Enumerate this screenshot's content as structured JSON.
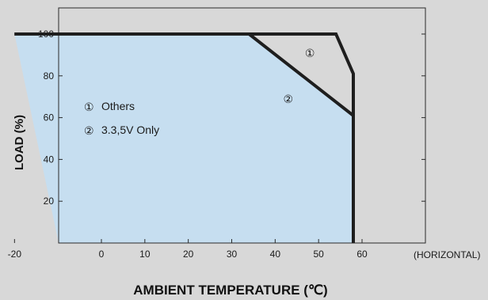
{
  "chart_data": {
    "type": "area",
    "title": "",
    "xlabel": "AMBIENT TEMPERATURE (℃)",
    "ylabel": "LOAD (%)",
    "x_unit_note": "(HORIZONTAL)",
    "xlim": [
      -20,
      65
    ],
    "ylim": [
      0,
      110
    ],
    "xticks": [
      -20,
      0,
      10,
      20,
      30,
      40,
      50,
      60
    ],
    "yticks": [
      20,
      40,
      60,
      80,
      100
    ],
    "grid": false,
    "series": [
      {
        "name": "Others",
        "marker": "①",
        "points": [
          [
            -20,
            100
          ],
          [
            54,
            100
          ],
          [
            58,
            81
          ],
          [
            58,
            0
          ]
        ]
      },
      {
        "name": "3.3,5V Only",
        "marker": "②",
        "points": [
          [
            -20,
            100
          ],
          [
            34,
            100
          ],
          [
            58,
            61
          ],
          [
            58,
            0
          ]
        ]
      }
    ],
    "legend": {
      "placement": "left",
      "items": [
        {
          "marker": "①",
          "label": "Others"
        },
        {
          "marker": "②",
          "label": "3.3,5V Only"
        }
      ]
    },
    "colors": {
      "background": "#d8d8d8",
      "area_fill": "#c6def0",
      "line": "#1e1e1e"
    }
  }
}
